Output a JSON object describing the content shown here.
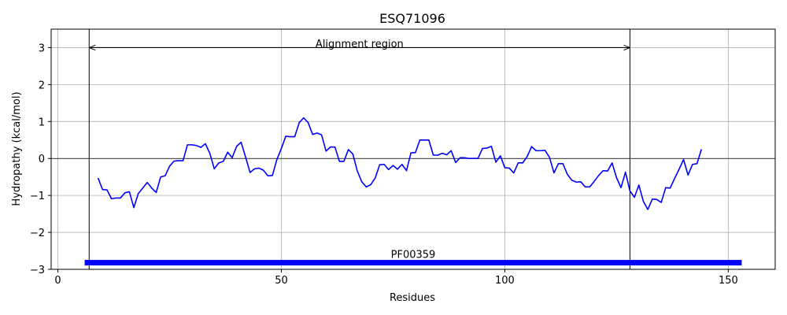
{
  "chart_data": {
    "type": "line",
    "title": "ESQ71096",
    "xlabel": "Residues",
    "ylabel": "Hydropathy (kcal/mol)",
    "xlim": [
      -1.5,
      160.5
    ],
    "ylim": [
      -3,
      3.5
    ],
    "xticks": [
      0,
      50,
      100,
      150
    ],
    "yticks": [
      -3,
      -2,
      -1,
      0,
      1,
      2,
      3
    ],
    "grid": true,
    "series": [
      {
        "color": "#0000ff",
        "x": [
          9,
          10,
          11,
          12,
          13,
          14,
          15,
          16,
          17,
          18,
          19,
          20,
          21,
          22,
          23,
          24,
          25,
          26,
          27,
          28,
          29,
          30,
          31,
          32,
          33,
          34,
          35,
          36,
          37,
          38,
          39,
          40,
          41,
          42,
          43,
          44,
          45,
          46,
          47,
          48,
          49,
          50,
          51,
          52,
          53,
          54,
          55,
          56,
          57,
          58,
          59,
          60,
          61,
          62,
          63,
          64,
          65,
          66,
          67,
          68,
          69,
          70,
          71,
          72,
          73,
          74,
          75,
          76,
          77,
          78,
          79,
          80,
          81,
          82,
          83,
          84,
          85,
          86,
          87,
          88,
          89,
          90,
          91,
          92,
          93,
          94,
          95,
          96,
          97,
          98,
          99,
          100,
          101,
          102,
          103,
          104,
          105,
          106,
          107,
          108,
          109,
          110,
          111,
          112,
          113,
          114,
          115,
          116,
          117,
          118,
          119,
          120,
          121,
          122,
          123,
          124,
          125,
          126,
          127,
          128,
          129,
          130,
          131,
          132,
          133,
          134,
          135,
          136,
          137,
          138,
          139,
          140,
          141,
          142,
          143,
          144
        ],
        "y": [
          -0.53,
          -0.84,
          -0.85,
          -1.09,
          -1.07,
          -1.07,
          -0.93,
          -0.9,
          -1.33,
          -0.95,
          -0.8,
          -0.65,
          -0.8,
          -0.92,
          -0.5,
          -0.47,
          -0.21,
          -0.07,
          -0.06,
          -0.06,
          0.37,
          0.37,
          0.35,
          0.3,
          0.4,
          0.14,
          -0.28,
          -0.12,
          -0.08,
          0.17,
          0.02,
          0.33,
          0.44,
          0.04,
          -0.38,
          -0.28,
          -0.26,
          -0.32,
          -0.47,
          -0.46,
          -0.03,
          0.27,
          0.6,
          0.59,
          0.59,
          0.97,
          1.1,
          0.97,
          0.65,
          0.69,
          0.64,
          0.2,
          0.31,
          0.31,
          -0.08,
          -0.08,
          0.24,
          0.12,
          -0.34,
          -0.63,
          -0.77,
          -0.71,
          -0.53,
          -0.17,
          -0.16,
          -0.3,
          -0.19,
          -0.29,
          -0.16,
          -0.33,
          0.15,
          0.16,
          0.5,
          0.5,
          0.5,
          0.09,
          0.09,
          0.14,
          0.1,
          0.21,
          -0.11,
          0.02,
          0.02,
          0.0,
          0.0,
          0.0,
          0.27,
          0.28,
          0.33,
          -0.1,
          0.07,
          -0.25,
          -0.26,
          -0.39,
          -0.12,
          -0.12,
          0.05,
          0.32,
          0.21,
          0.21,
          0.22,
          0.03,
          -0.39,
          -0.14,
          -0.14,
          -0.43,
          -0.59,
          -0.64,
          -0.63,
          -0.77,
          -0.77,
          -0.62,
          -0.46,
          -0.33,
          -0.34,
          -0.12,
          -0.52,
          -0.79,
          -0.37,
          -0.88,
          -1.05,
          -0.72,
          -1.16,
          -1.38,
          -1.1,
          -1.11,
          -1.19,
          -0.79,
          -0.8,
          -0.54,
          -0.29,
          -0.03,
          -0.45,
          -0.16,
          -0.14,
          0.25
        ]
      }
    ],
    "vlines": [
      7,
      128
    ],
    "annotations": [
      {
        "text": "Alignment region",
        "x1": 7,
        "x2": 128,
        "y": 3,
        "label_x": 67.5,
        "label_y": 3.1
      }
    ],
    "domains": [
      {
        "name": "PF00359",
        "start": 6,
        "end": 153,
        "y": -2.82,
        "color": "#0000ff"
      }
    ]
  }
}
